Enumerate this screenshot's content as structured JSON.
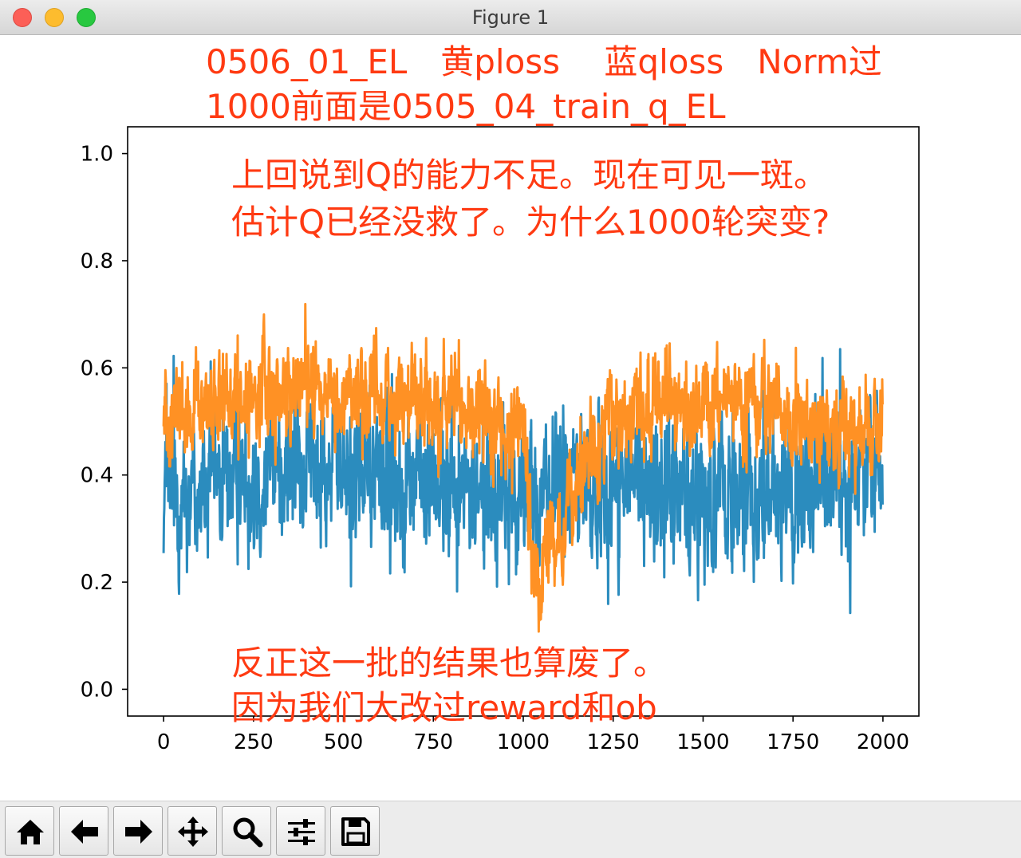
{
  "window": {
    "title": "Figure 1"
  },
  "chart_data": {
    "type": "line",
    "xlim": [
      -100,
      2100
    ],
    "ylim": [
      -0.05,
      1.05
    ],
    "x_ticks": [
      0,
      250,
      500,
      750,
      1000,
      1250,
      1500,
      1750,
      2000
    ],
    "y_ticks": [
      0.0,
      0.2,
      0.4,
      0.6,
      0.8,
      1.0
    ],
    "x_tick_labels": [
      "0",
      "250",
      "500",
      "750",
      "1000",
      "1250",
      "1500",
      "1750",
      "2000"
    ],
    "y_tick_labels": [
      "0.0",
      "0.2",
      "0.4",
      "0.6",
      "0.8",
      "1.0"
    ],
    "grid": false,
    "n_points": 2000,
    "series": [
      {
        "color": "#2b8cbe",
        "base_x": [
          0,
          100,
          250,
          400,
          500,
          650,
          800,
          950,
          1000,
          1100,
          1250,
          1400,
          1550,
          1700,
          1850,
          2000
        ],
        "base_y": [
          0.37,
          0.38,
          0.41,
          0.42,
          0.41,
          0.4,
          0.38,
          0.36,
          0.35,
          0.37,
          0.38,
          0.37,
          0.37,
          0.38,
          0.38,
          0.42
        ],
        "noise_amplitude": 0.11
      },
      {
        "color": "#ff9124",
        "base_x": [
          0,
          100,
          250,
          400,
          500,
          650,
          800,
          950,
          1000,
          1030,
          1080,
          1150,
          1250,
          1400,
          1550,
          1700,
          1850,
          2000
        ],
        "base_y": [
          0.52,
          0.5,
          0.55,
          0.56,
          0.56,
          0.54,
          0.52,
          0.5,
          0.49,
          0.2,
          0.25,
          0.38,
          0.5,
          0.54,
          0.54,
          0.52,
          0.48,
          0.5
        ],
        "noise_amplitude": 0.07
      }
    ],
    "annotations": [
      "0506_01_EL　黄ploss　 蓝qloss　Norm过",
      "1000前面是0505_04_train_q_EL",
      "上回说到Q的能力不足。现在可见一斑。",
      "估计Q已经没救了。为什么1000轮突变?",
      "反正这一批的结果也算废了。",
      "因为我们大改过reward和ob"
    ]
  },
  "toolbar": {
    "buttons": [
      {
        "name": "home-button",
        "icon": "home-icon"
      },
      {
        "name": "back-button",
        "icon": "arrow-left-icon"
      },
      {
        "name": "forward-button",
        "icon": "arrow-right-icon"
      },
      {
        "name": "pan-button",
        "icon": "move-icon"
      },
      {
        "name": "zoom-button",
        "icon": "magnifier-icon"
      },
      {
        "name": "configure-subplots-button",
        "icon": "sliders-icon"
      },
      {
        "name": "save-button",
        "icon": "floppy-disk-icon"
      }
    ]
  }
}
